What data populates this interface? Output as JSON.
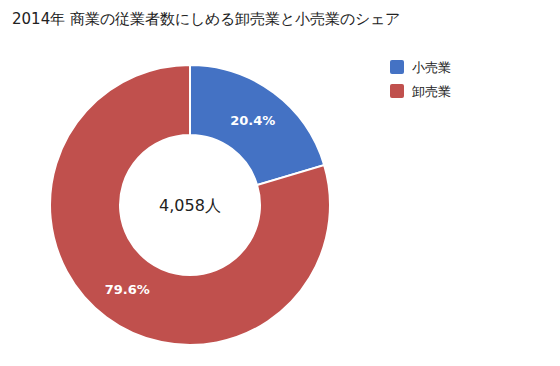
{
  "chart_data": {
    "type": "donut",
    "title": "2014年 商業の従業者数にしめる卸売業と小売業のシェア",
    "categories": [
      "小売業",
      "卸売業"
    ],
    "values": [
      20.4,
      79.6
    ],
    "value_labels": [
      "20.4%",
      "79.6%"
    ],
    "colors": [
      "#4472c4",
      "#c0504d"
    ],
    "data_labels": true,
    "legend": "upper right",
    "annotations": [
      "4,058人"
    ]
  }
}
